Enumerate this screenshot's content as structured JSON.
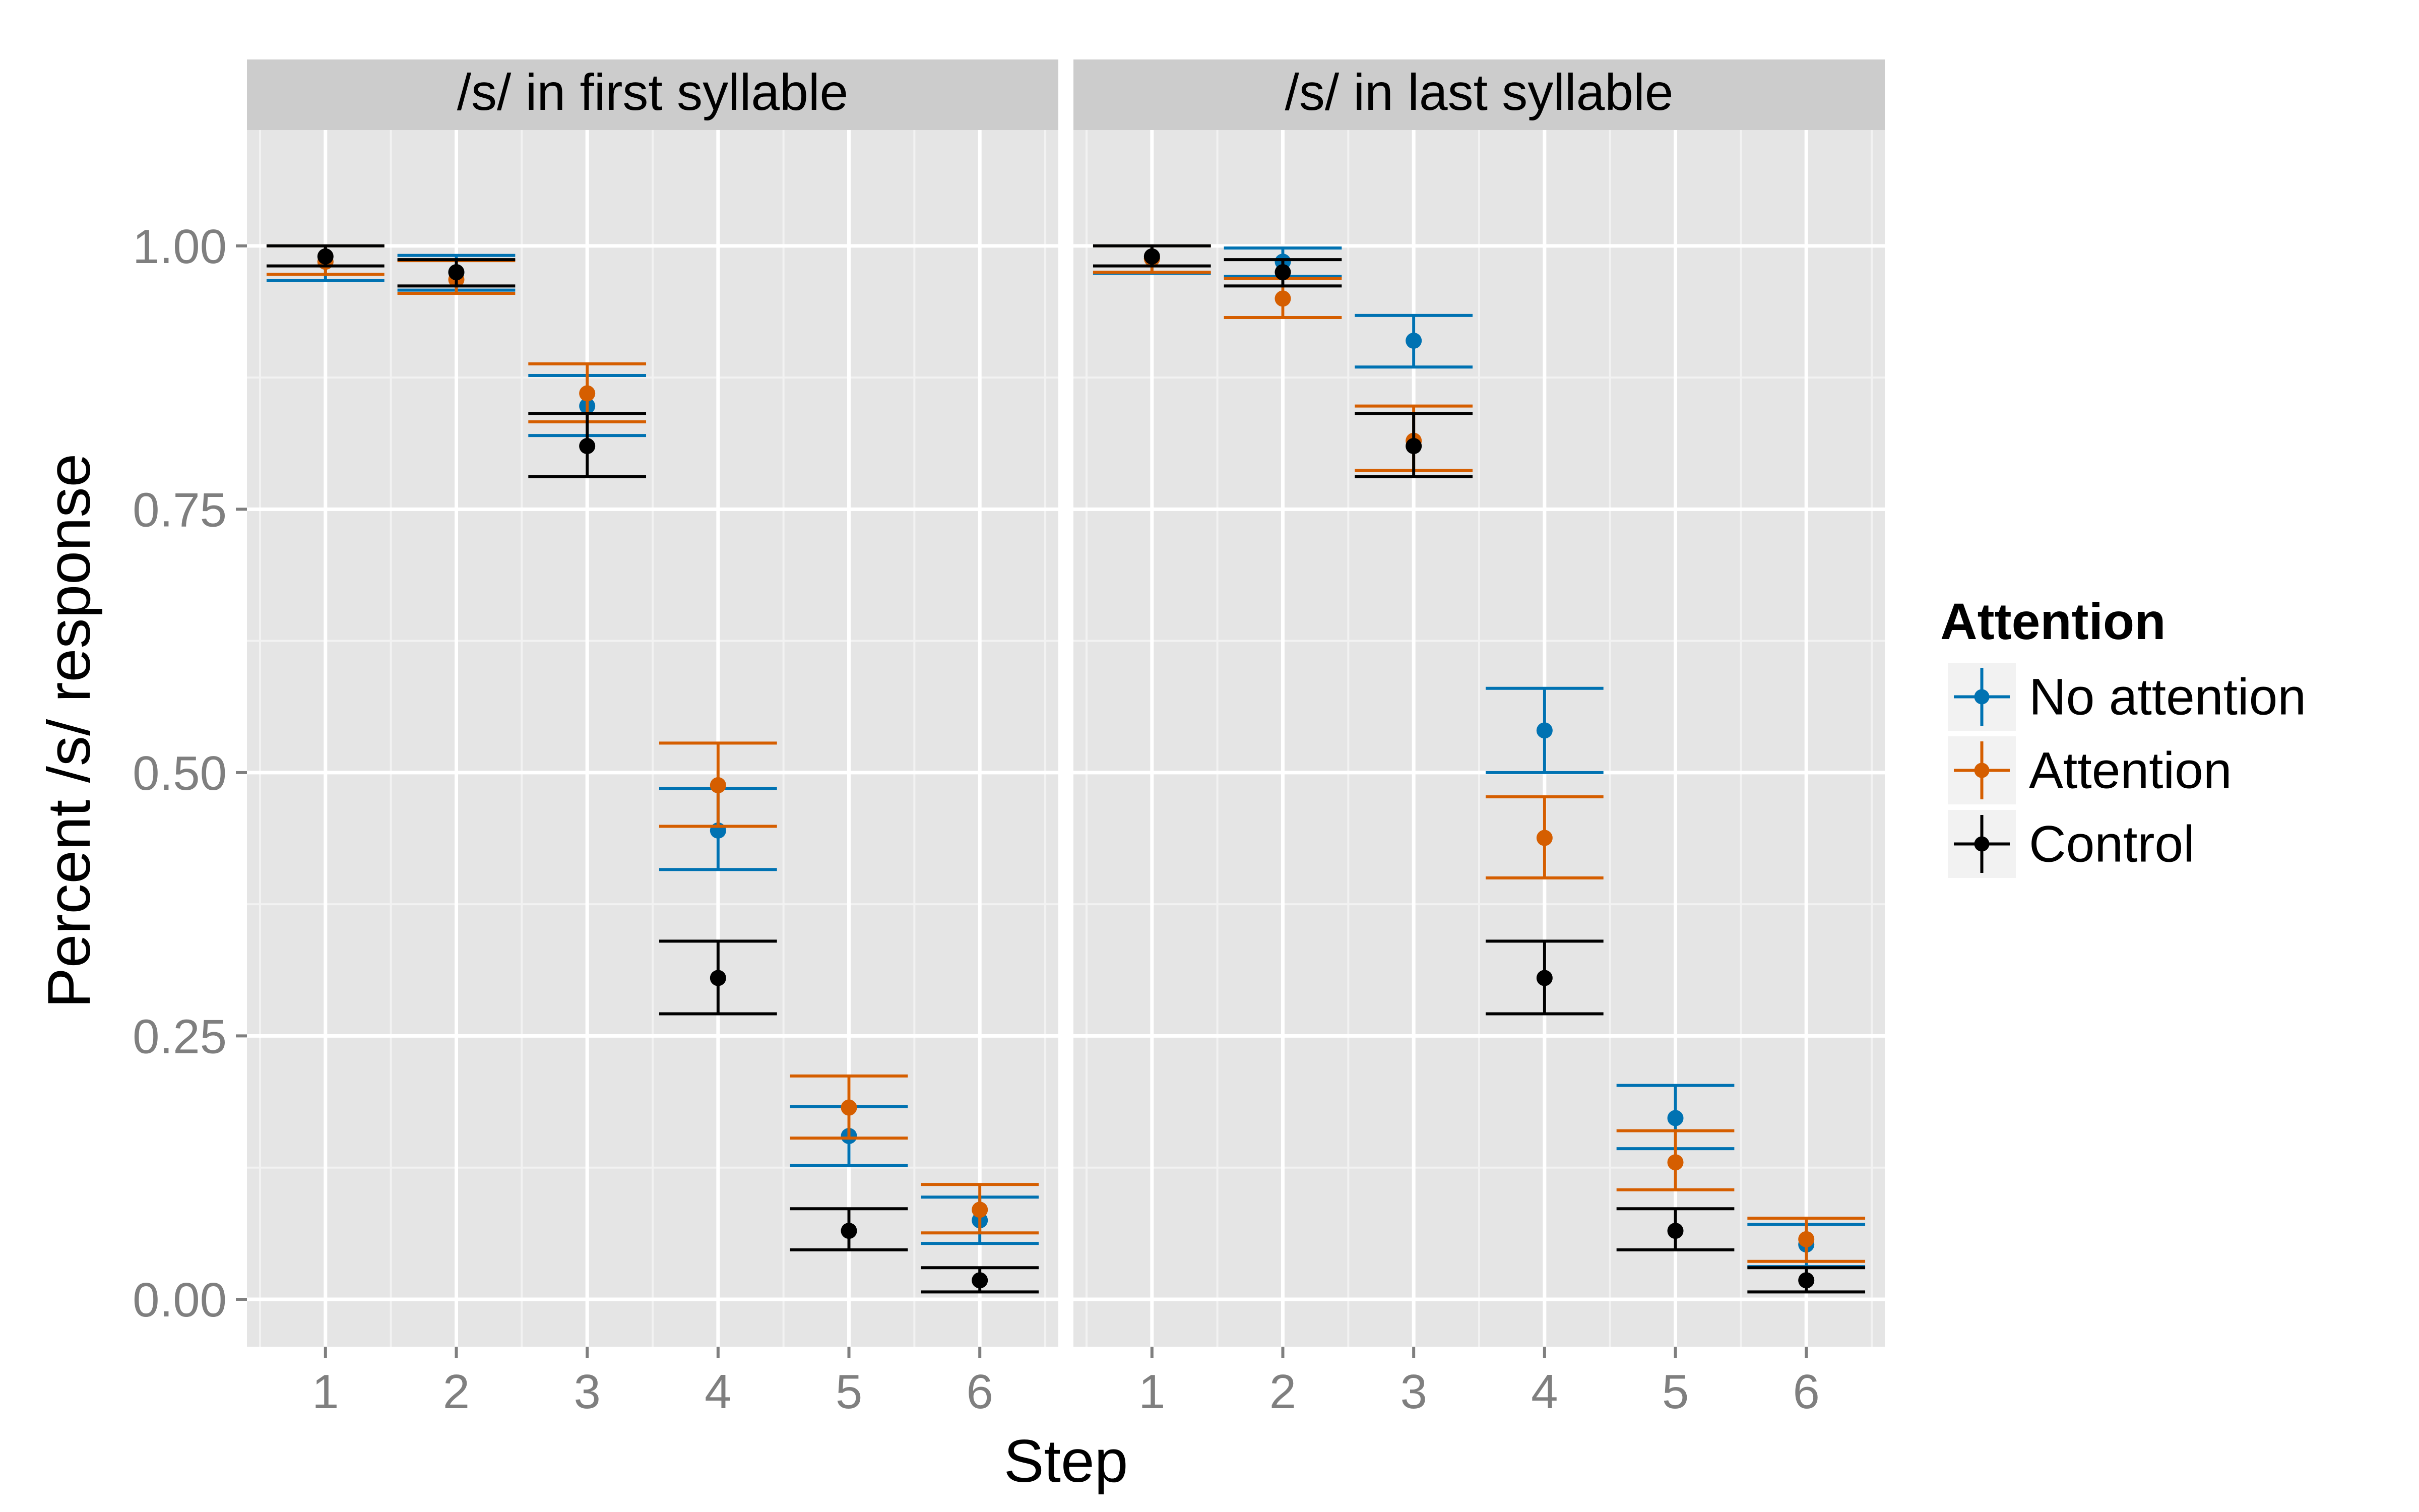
{
  "chart_data": {
    "type": "scatter",
    "subtype": "point-errorbar",
    "facets": [
      "/s/ in first syllable",
      "/s/ in last syllable"
    ],
    "x": [
      1,
      2,
      3,
      4,
      5,
      6
    ],
    "x_tick_labels": [
      "1",
      "2",
      "3",
      "4",
      "5",
      "6"
    ],
    "xlabel": "Step",
    "ylabel": "Percent /s/ response",
    "ylim": [
      -0.045,
      1.11
    ],
    "y_ticks": [
      0,
      0.25,
      0.5,
      0.75,
      1
    ],
    "y_tick_labels": [
      "0.00",
      "0.25",
      "0.50",
      "0.75",
      "1.00"
    ],
    "grid": true,
    "legend": {
      "title": "Attention",
      "placement": "right",
      "entries": [
        "No attention",
        "Attention",
        "Control"
      ]
    },
    "series": [
      {
        "name": "No attention",
        "color": "#0072B2",
        "panels": [
          {
            "y": [
              0.985,
              0.975,
              0.848,
              0.445,
              0.155,
              0.075
            ],
            "lower": [
              0.967,
              0.958,
              0.82,
              0.408,
              0.127,
              0.053
            ],
            "upper": [
              1.0,
              0.991,
              0.877,
              0.485,
              0.183,
              0.097
            ]
          },
          {
            "y": [
              0.988,
              0.985,
              0.91,
              0.54,
              0.172,
              0.052
            ],
            "lower": [
              0.974,
              0.971,
              0.885,
              0.5,
              0.143,
              0.031
            ],
            "upper": [
              1.0,
              0.998,
              0.934,
              0.58,
              0.203,
              0.071
            ]
          }
        ]
      },
      {
        "name": "Attention",
        "color": "#D55E00",
        "panels": [
          {
            "y": [
              0.985,
              0.968,
              0.86,
              0.488,
              0.182,
              0.085
            ],
            "lower": [
              0.973,
              0.955,
              0.833,
              0.449,
              0.153,
              0.063
            ],
            "upper": [
              1.0,
              0.986,
              0.888,
              0.528,
              0.212,
              0.109
            ]
          },
          {
            "y": [
              0.988,
              0.95,
              0.815,
              0.438,
              0.13,
              0.057
            ],
            "lower": [
              0.975,
              0.932,
              0.787,
              0.4,
              0.104,
              0.036
            ],
            "upper": [
              1.0,
              0.969,
              0.848,
              0.477,
              0.16,
              0.077
            ]
          }
        ]
      },
      {
        "name": "Control",
        "color": "#000000",
        "panels": [
          {
            "y": [
              0.99,
              0.975,
              0.81,
              0.305,
              0.065,
              0.018
            ],
            "lower": [
              0.981,
              0.962,
              0.781,
              0.271,
              0.047,
              0.007
            ],
            "upper": [
              1.0,
              0.987,
              0.841,
              0.34,
              0.086,
              0.03
            ]
          },
          {
            "y": [
              0.99,
              0.975,
              0.81,
              0.305,
              0.065,
              0.018
            ],
            "lower": [
              0.981,
              0.962,
              0.781,
              0.271,
              0.047,
              0.007
            ],
            "upper": [
              1.0,
              0.987,
              0.841,
              0.34,
              0.086,
              0.03
            ]
          }
        ]
      }
    ]
  }
}
